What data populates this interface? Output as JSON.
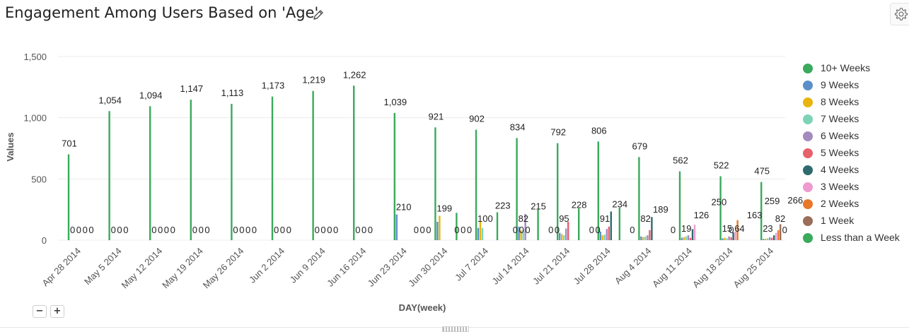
{
  "title": "Engagement Among Users Based on 'Age'",
  "zoom_out_label": "−",
  "zoom_in_label": "+",
  "chart_data": {
    "type": "bar",
    "title": "Engagement Among Users Based on 'Age'",
    "xlabel": "DAY(week)",
    "ylabel": "Values",
    "ylim": [
      0,
      1500
    ],
    "yticks": [
      "0",
      "500",
      "1,000",
      "1,500"
    ],
    "grid": true,
    "legend_position": "right",
    "categories": [
      "Apr 28 2014",
      "May 5 2014",
      "May 12 2014",
      "May 19 2014",
      "May 26 2014",
      "Jun 2 2014",
      "Jun 9 2014",
      "Jun 16 2014",
      "Jun 23 2014",
      "Jun 30 2014",
      "Jul 7 2014",
      "Jul 14 2014",
      "Jul 21 2014",
      "Jul 28 2014",
      "Aug 4 2014",
      "Aug 11 2014",
      "Aug 18 2014",
      "Aug 25 2014"
    ],
    "series": [
      {
        "name": "10+ Weeks",
        "color": "#3aaa5c",
        "values": [
          701,
          1054,
          1094,
          1147,
          1113,
          1173,
          1219,
          1262,
          1039,
          921,
          902,
          834,
          792,
          806,
          679,
          562,
          522,
          475
        ]
      },
      {
        "name": "9 Weeks",
        "color": "#5b8fc9",
        "values": [
          0,
          0,
          0,
          0,
          0,
          0,
          0,
          0,
          210,
          150,
          100,
          110,
          60,
          70,
          30,
          20,
          15,
          10
        ]
      },
      {
        "name": "8 Weeks",
        "color": "#e8b410",
        "values": [
          0,
          0,
          0,
          0,
          0,
          0,
          0,
          0,
          0,
          199,
          150,
          80,
          50,
          40,
          25,
          25,
          20,
          12
        ]
      },
      {
        "name": "7 Weeks",
        "color": "#7dd3b8",
        "values": [
          0,
          0,
          0,
          0,
          0,
          0,
          0,
          0,
          0,
          0,
          100,
          82,
          40,
          45,
          30,
          30,
          15,
          15
        ]
      },
      {
        "name": "6 Weeks",
        "color": "#a48bbf",
        "values": [
          0,
          0,
          0,
          0,
          0,
          0,
          0,
          0,
          0,
          0,
          0,
          215,
          95,
          91,
          40,
          40,
          30,
          23
        ]
      },
      {
        "name": "5 Weeks",
        "color": "#e8606a",
        "values": [
          0,
          0,
          0,
          0,
          0,
          0,
          0,
          0,
          0,
          0,
          0,
          0,
          150,
          110,
          82,
          19,
          25,
          20
        ]
      },
      {
        "name": "4 Weeks",
        "color": "#2e6b6f",
        "values": [
          0,
          0,
          0,
          0,
          0,
          0,
          0,
          0,
          0,
          0,
          0,
          0,
          0,
          234,
          189,
          90,
          64,
          40
        ]
      },
      {
        "name": "3 Weeks",
        "color": "#ee9ad0",
        "values": [
          0,
          0,
          0,
          0,
          0,
          0,
          0,
          0,
          0,
          0,
          0,
          0,
          0,
          0,
          0,
          126,
          70,
          60
        ]
      },
      {
        "name": "2 Weeks",
        "color": "#e8782a",
        "values": [
          0,
          0,
          0,
          0,
          0,
          0,
          0,
          0,
          0,
          0,
          0,
          0,
          0,
          0,
          0,
          0,
          163,
          82
        ]
      },
      {
        "name": "1 Week",
        "color": "#9a6e58",
        "values": [
          0,
          0,
          0,
          0,
          0,
          0,
          0,
          0,
          0,
          0,
          0,
          0,
          0,
          0,
          0,
          0,
          0,
          130
        ]
      },
      {
        "name": "Less than a Week",
        "color": "#3aaa5c",
        "values": [
          0,
          0,
          0,
          0,
          0,
          0,
          0,
          0,
          0,
          223,
          228,
          250,
          259,
          266,
          0,
          0,
          0,
          0
        ]
      }
    ],
    "data_labels": [
      [
        "701",
        "0",
        "0",
        "0",
        "0"
      ],
      [
        "1,054",
        "0",
        "0",
        "0"
      ],
      [
        "1,094",
        "0",
        "0",
        "0",
        "0"
      ],
      [
        "1,147",
        "0",
        "0",
        "0"
      ],
      [
        "1,113",
        "0",
        "0",
        "0",
        "0"
      ],
      [
        "1,173",
        "0",
        "0",
        "0"
      ],
      [
        "1,219",
        "0",
        "0",
        "0",
        "0"
      ],
      [
        "1,262",
        "0",
        "0",
        "0"
      ],
      [
        "1,039",
        "210",
        "0",
        "0",
        "0"
      ],
      [
        "921",
        "199",
        "0",
        "0",
        "0"
      ],
      [
        "902",
        "100",
        "223",
        "0",
        "0",
        "0"
      ],
      [
        "834",
        "82",
        "215",
        "0",
        "0"
      ],
      [
        "792",
        "95",
        "228",
        "0",
        "0"
      ],
      [
        "806",
        "91",
        "234",
        "0"
      ],
      [
        "679",
        "82",
        "189",
        "0"
      ],
      [
        "562",
        "19",
        "126",
        "250",
        "0"
      ],
      [
        "522",
        "15",
        "64",
        "163",
        "259",
        "0"
      ],
      [
        "475",
        "23",
        "82",
        "266"
      ]
    ]
  }
}
